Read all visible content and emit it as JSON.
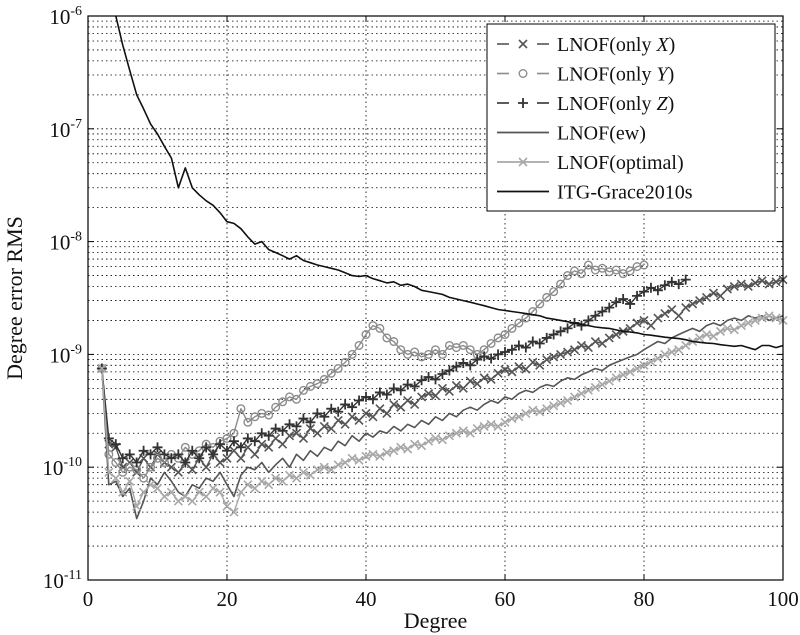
{
  "chart_data": {
    "type": "line",
    "title": "",
    "xlabel": "Degree",
    "ylabel": "Degree error RMS",
    "xscale": "linear",
    "yscale": "log",
    "xlim": [
      0,
      100
    ],
    "ylim": [
      1e-11,
      1e-06
    ],
    "grid": true,
    "legend_position": "top-right",
    "x_ticks": [
      {
        "value": 0,
        "label": "0"
      },
      {
        "value": 20,
        "label": "20"
      },
      {
        "value": 40,
        "label": "40"
      },
      {
        "value": 60,
        "label": "60"
      },
      {
        "value": 80,
        "label": "80"
      },
      {
        "value": 100,
        "label": "100"
      }
    ],
    "y_ticks": [
      {
        "value": 1e-11,
        "base": "10",
        "exp": "-11"
      },
      {
        "value": 1e-10,
        "base": "10",
        "exp": "-10"
      },
      {
        "value": 1e-09,
        "base": "10",
        "exp": "-9"
      },
      {
        "value": 1e-08,
        "base": "10",
        "exp": "-8"
      },
      {
        "value": 1e-07,
        "base": "10",
        "exp": "-7"
      },
      {
        "value": 1e-06,
        "base": "10",
        "exp": "-6"
      }
    ],
    "series": [
      {
        "name": "LNOF(only X)",
        "legend_prefix": "LNOF(only ",
        "legend_var": "X",
        "legend_suffix": ")",
        "color": "#555555",
        "dash": "dashed",
        "marker": "x",
        "x_start": 2,
        "values": [
          7.5e-10,
          1.6e-10,
          1.5e-10,
          1e-10,
          1.1e-10,
          9e-11,
          1.2e-10,
          1e-10,
          1.3e-10,
          1.1e-10,
          1e-10,
          9e-11,
          1.1e-10,
          9.5e-11,
          1.2e-10,
          1e-10,
          1.3e-10,
          1.1e-10,
          1.2e-10,
          1.4e-10,
          1.2e-10,
          1.5e-10,
          1.3e-10,
          1.6e-10,
          1.5e-10,
          1.8e-10,
          1.6e-10,
          1.9e-10,
          2e-10,
          1.8e-10,
          2.2e-10,
          2e-10,
          2.3e-10,
          2.2e-10,
          2.6e-10,
          2.4e-10,
          2.8e-10,
          2.6e-10,
          3e-10,
          2.8e-10,
          3.3e-10,
          3e-10,
          3.6e-10,
          3.4e-10,
          3.9e-10,
          3.6e-10,
          4.2e-10,
          4.5e-10,
          4.3e-10,
          5e-10,
          4.7e-10,
          5.3e-10,
          5e-10,
          5.8e-10,
          5.5e-10,
          6.2e-10,
          6e-10,
          6.8e-10,
          7.3e-10,
          7e-10,
          7.8e-10,
          7.4e-10,
          8.5e-10,
          8e-10,
          9e-10,
          9.5e-10,
          1e-09,
          1.05e-09,
          1.1e-09,
          1.2e-09,
          1.15e-09,
          1.3e-09,
          1.25e-09,
          1.4e-09,
          1.5e-09,
          1.6e-09,
          1.7e-09,
          1.9e-09,
          2e-09,
          1.8e-09,
          2.1e-09,
          2.3e-09,
          2.5e-09,
          2.2e-09,
          2.6e-09,
          2.8e-09,
          3e-09,
          3.2e-09,
          3.5e-09,
          3.3e-09,
          3.8e-09,
          4e-09,
          4.2e-09,
          4e-09,
          4.3e-09,
          4.5e-09,
          4.2e-09,
          4.4e-09,
          4.6e-09
        ]
      },
      {
        "name": "LNOF(only Y)",
        "legend_prefix": "LNOF(only ",
        "legend_var": "Y",
        "legend_suffix": ")",
        "color": "#8c8c8c",
        "dash": "dashed",
        "marker": "o",
        "x_start": 2,
        "values": [
          7.5e-10,
          1.3e-10,
          1.1e-10,
          9e-11,
          1e-10,
          9.5e-11,
          8e-11,
          1e-10,
          1.2e-10,
          1.1e-10,
          1.3e-10,
          1.2e-10,
          1.5e-10,
          1.3e-10,
          1.4e-10,
          1.6e-10,
          1.5e-10,
          1.7e-10,
          1.8e-10,
          2e-10,
          3.3e-10,
          2.5e-10,
          2.8e-10,
          3e-10,
          2.9e-10,
          3.4e-10,
          3.8e-10,
          4.2e-10,
          4e-10,
          4.8e-10,
          5.2e-10,
          5.5e-10,
          6e-10,
          6.8e-10,
          7.5e-10,
          8.5e-10,
          1e-09,
          1.2e-09,
          1.5e-09,
          1.8e-09,
          1.7e-09,
          1.4e-09,
          1.3e-09,
          1.1e-09,
          1e-09,
          1.05e-09,
          9.5e-10,
          1e-09,
          1.1e-09,
          1e-09,
          1.2e-09,
          1.15e-09,
          1.2e-09,
          1.1e-09,
          1e-09,
          1.1e-09,
          1.25e-09,
          1.4e-09,
          1.5e-09,
          1.7e-09,
          1.9e-09,
          2.1e-09,
          2.4e-09,
          2.8e-09,
          3.2e-09,
          3.6e-09,
          4.2e-09,
          5e-09,
          5.5e-09,
          5.2e-09,
          6.2e-09,
          5.6e-09,
          5.8e-09,
          5.4e-09,
          5.6e-09,
          5.2e-09,
          5.5e-09,
          6e-09,
          6.2e-09
        ],
        "x_offset": 22
      },
      {
        "name": "LNOF(only Z)",
        "legend_prefix": "LNOF(only ",
        "legend_var": "Z",
        "legend_suffix": ")",
        "color": "#333333",
        "dash": "dashed",
        "marker": "+",
        "x_start": 2,
        "values": [
          7.5e-10,
          1.8e-10,
          1.6e-10,
          1.2e-10,
          1.3e-10,
          1.1e-10,
          1.4e-10,
          1.3e-10,
          1.5e-10,
          1.3e-10,
          1.2e-10,
          1.3e-10,
          1.1e-10,
          1.4e-10,
          1.2e-10,
          1.5e-10,
          1.3e-10,
          1.6e-10,
          1.4e-10,
          1.7e-10,
          1.5e-10,
          1.8e-10,
          1.7e-10,
          2e-10,
          1.9e-10,
          2.2e-10,
          2.1e-10,
          2.4e-10,
          2.3e-10,
          2.7e-10,
          2.5e-10,
          3e-10,
          2.8e-10,
          3.3e-10,
          3.1e-10,
          3.6e-10,
          3.4e-10,
          3.9e-10,
          4.2e-10,
          4e-10,
          4.6e-10,
          4.4e-10,
          5e-10,
          4.8e-10,
          5.4e-10,
          5.2e-10,
          5.9e-10,
          6.3e-10,
          6e-10,
          6.7e-10,
          7.2e-10,
          7.8e-10,
          8.4e-10,
          8e-10,
          9e-10,
          9.6e-10,
          9.2e-10,
          1e-09,
          1.05e-09,
          1.1e-09,
          1.2e-09,
          1.15e-09,
          1.3e-09,
          1.25e-09,
          1.4e-09,
          1.5e-09,
          1.6e-09,
          1.7e-09,
          1.9e-09,
          1.8e-09,
          2e-09,
          2.2e-09,
          2.4e-09,
          2.6e-09,
          2.9e-09,
          3.1e-09,
          2.8e-09,
          3.3e-09,
          3.6e-09,
          3.9e-09,
          3.7e-09,
          4.1e-09,
          4.4e-09,
          4.2e-09,
          4.6e-09
        ]
      },
      {
        "name": "LNOF(ew)",
        "legend_prefix": "LNOF(ew)",
        "legend_var": "",
        "legend_suffix": "",
        "color": "#555555",
        "dash": "solid",
        "marker": "none",
        "x_start": 2,
        "values": [
          7.5e-10,
          7e-11,
          7.5e-11,
          5.5e-11,
          6.5e-11,
          3.5e-11,
          5e-11,
          8e-11,
          7e-11,
          9e-11,
          7.5e-11,
          6e-11,
          5.5e-11,
          7e-11,
          6.5e-11,
          8e-11,
          7.5e-11,
          9e-11,
          7e-11,
          5.5e-11,
          8.5e-11,
          1e-10,
          9.5e-11,
          1.1e-10,
          9e-11,
          1.05e-10,
          1.2e-10,
          1e-10,
          1.3e-10,
          1.15e-10,
          1.4e-10,
          1.25e-10,
          1.5e-10,
          1.4e-10,
          1.7e-10,
          1.55e-10,
          1.9e-10,
          1.7e-10,
          2e-10,
          1.85e-10,
          2.1e-10,
          2e-10,
          2.3e-10,
          2.1e-10,
          2.4e-10,
          2.25e-10,
          2.6e-10,
          2.4e-10,
          2.8e-10,
          2.6e-10,
          3e-10,
          2.8e-10,
          3.2e-10,
          3.4e-10,
          3.2e-10,
          3.6e-10,
          3.9e-10,
          3.7e-10,
          4.2e-10,
          4e-10,
          4.5e-10,
          4.8e-10,
          4.6e-10,
          5.1e-10,
          5.4e-10,
          5.2e-10,
          5.8e-10,
          6.2e-10,
          6e-10,
          6.6e-10,
          7e-10,
          7.5e-10,
          7.2e-10,
          8e-10,
          8.5e-10,
          9e-10,
          9.5e-10,
          1e-09,
          1.1e-09,
          1.2e-09,
          1.3e-09,
          1.25e-09,
          1.4e-09,
          1.5e-09,
          1.6e-09,
          1.7e-09,
          1.6e-09,
          1.8e-09,
          1.9e-09,
          1.8e-09,
          2e-09,
          2.1e-09,
          2e-09,
          2.2e-09,
          2.1e-09,
          2.2e-09,
          2e-09,
          2.1e-09,
          2.2e-09
        ]
      },
      {
        "name": "LNOF(optimal)",
        "legend_prefix": "LNOF(optimal)",
        "legend_var": "",
        "legend_suffix": "",
        "color": "#a8a8a8",
        "dash": "solid",
        "marker": "x",
        "x_start": 2,
        "values": [
          7.5e-10,
          9e-11,
          8e-11,
          6e-11,
          7.5e-11,
          4.5e-11,
          6e-11,
          7e-11,
          6.5e-11,
          5.5e-11,
          6e-11,
          5e-11,
          5.5e-11,
          5e-11,
          6e-11,
          5.5e-11,
          6.5e-11,
          6e-11,
          4.5e-11,
          4e-11,
          6e-11,
          7e-11,
          6.5e-11,
          7.5e-11,
          7e-11,
          8e-11,
          7.5e-11,
          8.5e-11,
          8e-11,
          9e-11,
          8.5e-11,
          9.5e-11,
          1e-10,
          9.5e-11,
          1.05e-10,
          1.1e-10,
          1.2e-10,
          1.15e-10,
          1.25e-10,
          1.3e-10,
          1.25e-10,
          1.35e-10,
          1.4e-10,
          1.5e-10,
          1.45e-10,
          1.6e-10,
          1.55e-10,
          1.7e-10,
          1.8e-10,
          1.75e-10,
          1.9e-10,
          2e-10,
          2.1e-10,
          2e-10,
          2.2e-10,
          2.3e-10,
          2.4e-10,
          2.3e-10,
          2.5e-10,
          2.7e-10,
          2.8e-10,
          3e-10,
          3.2e-10,
          3.1e-10,
          3.3e-10,
          3.5e-10,
          3.7e-10,
          3.9e-10,
          4.2e-10,
          4.5e-10,
          4.8e-10,
          5.1e-10,
          5.4e-10,
          5.8e-10,
          6.2e-10,
          6.6e-10,
          7e-10,
          7.5e-10,
          8e-10,
          8.6e-10,
          9.2e-10,
          1e-09,
          1.05e-09,
          1.1e-09,
          1.2e-09,
          1.3e-09,
          1.4e-09,
          1.5e-09,
          1.45e-09,
          1.6e-09,
          1.7e-09,
          1.65e-09,
          1.8e-09,
          1.9e-09,
          2e-09,
          2.1e-09,
          2.2e-09,
          2.1e-09,
          2e-09
        ]
      },
      {
        "name": "ITG-Grace2010s",
        "legend_prefix": "ITG-Grace2010s",
        "legend_var": "",
        "legend_suffix": "",
        "color": "#111111",
        "dash": "solid",
        "marker": "none",
        "x_start": 4,
        "values": [
          1e-06,
          5.5e-07,
          3.3e-07,
          2e-07,
          1.5e-07,
          1.1e-07,
          9e-08,
          7e-08,
          5.5e-08,
          3e-08,
          4.5e-08,
          3e-08,
          2.6e-08,
          2.3e-08,
          2.1e-08,
          1.8e-08,
          1.5e-08,
          1.45e-08,
          1.3e-08,
          1.1e-08,
          9.5e-09,
          1e-08,
          8.5e-09,
          8e-09,
          7.5e-09,
          7e-09,
          7.5e-09,
          6.8e-09,
          6.5e-09,
          6.2e-09,
          6e-09,
          5.8e-09,
          5.6e-09,
          5.3e-09,
          5e-09,
          4.9e-09,
          5e-09,
          4.7e-09,
          4.5e-09,
          4.3e-09,
          4.4e-09,
          4.1e-09,
          4.2e-09,
          4e-09,
          3.7e-09,
          3.6e-09,
          3.5e-09,
          3.4e-09,
          3.2e-09,
          3.1e-09,
          3e-09,
          2.9e-09,
          2.8e-09,
          2.7e-09,
          2.6e-09,
          2.5e-09,
          2.45e-09,
          2.4e-09,
          2.35e-09,
          2.3e-09,
          2.25e-09,
          2.2e-09,
          2.1e-09,
          2.05e-09,
          2e-09,
          1.95e-09,
          1.9e-09,
          1.85e-09,
          1.8e-09,
          1.75e-09,
          1.72e-09,
          1.7e-09,
          1.65e-09,
          1.6e-09,
          1.58e-09,
          1.55e-09,
          1.5e-09,
          1.48e-09,
          1.45e-09,
          1.42e-09,
          1.4e-09,
          1.38e-09,
          1.35e-09,
          1.3e-09,
          1.28e-09,
          1.26e-09,
          1.25e-09,
          1.22e-09,
          1.2e-09,
          1.18e-09,
          1.2e-09,
          1.15e-09,
          1.1e-09,
          1.2e-09,
          1.2e-09,
          1.15e-09,
          1.2e-09
        ]
      }
    ]
  }
}
